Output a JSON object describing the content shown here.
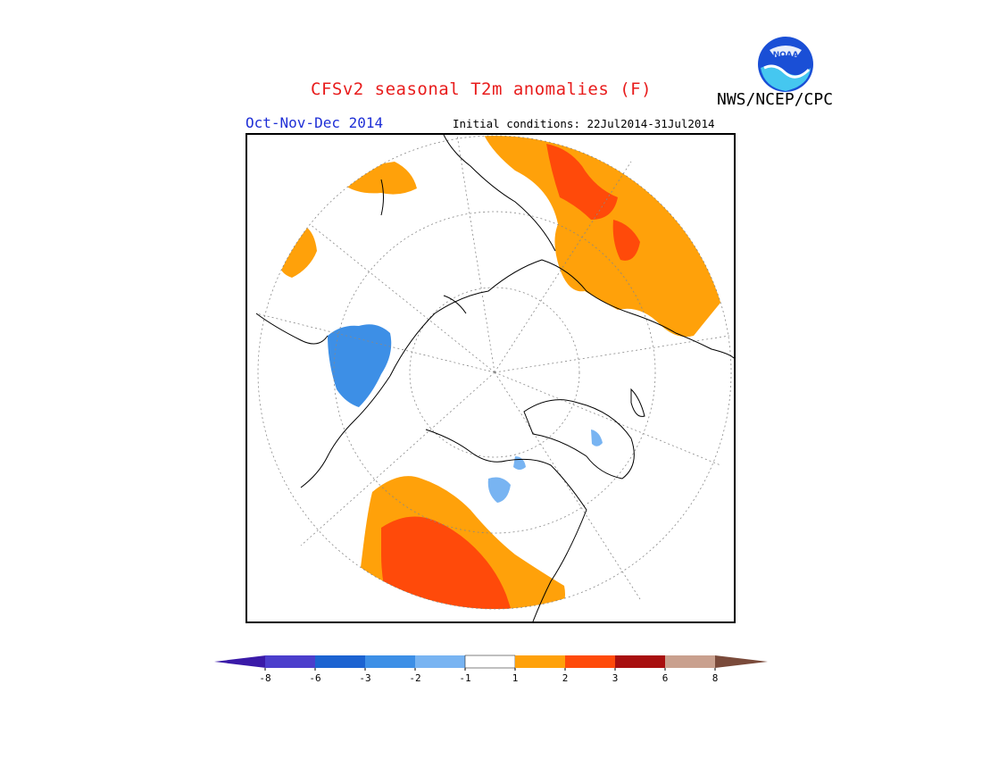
{
  "header": {
    "title": "CFSv2 seasonal T2m anomalies (F)",
    "organization": "NWS/NCEP/CPC",
    "season": "Oct-Nov-Dec 2014",
    "initial_conditions": "Initial conditions: 22Jul2014-31Jul2014",
    "logo_text": "NOAA"
  },
  "legend": {
    "unit": "F",
    "labels": [
      "-8",
      "-6",
      "-3",
      "-2",
      "-1",
      "1",
      "2",
      "3",
      "6",
      "8"
    ],
    "bins": [
      {
        "range": "< -8",
        "color": "#3a1aa8"
      },
      {
        "range": "-8 to -6",
        "color": "#4b3ecc"
      },
      {
        "range": "-6 to -3",
        "color": "#1c63d1"
      },
      {
        "range": "-3 to -2",
        "color": "#3d8fe6"
      },
      {
        "range": "-2 to -1",
        "color": "#78b4f2"
      },
      {
        "range": "-1 to 1",
        "color": "#ffffff"
      },
      {
        "range": "1 to 2",
        "color": "#ffa10a"
      },
      {
        "range": "2 to 3",
        "color": "#ff4a0a"
      },
      {
        "range": "3 to 6",
        "color": "#a80f0f"
      },
      {
        "range": "6 to 8",
        "color": "#c9a08e"
      },
      {
        "range": "> 8",
        "color": "#7a4a3a"
      }
    ]
  },
  "map": {
    "projection": "north polar stereographic",
    "regions": [
      {
        "name": "Europe and western Russia",
        "anomaly": "1 to 2",
        "color": "#ffa10a"
      },
      {
        "name": "northwestern Russia core",
        "anomaly": "2 to 3",
        "color": "#ff4a0a"
      },
      {
        "name": "western United States",
        "anomaly": "2 to 3",
        "color": "#ff4a0a"
      },
      {
        "name": "western North America margin",
        "anomaly": "1 to 2",
        "color": "#ffa10a"
      },
      {
        "name": "eastern Siberia / Kamchatka",
        "anomaly": "-2 to -3",
        "color": "#3d8fe6"
      },
      {
        "name": "northeast Africa / Middle East",
        "anomaly": "1 to 2",
        "color": "#ffa10a"
      },
      {
        "name": "Central Asia",
        "anomaly": "1 to 2",
        "color": "#ffa10a"
      }
    ]
  }
}
